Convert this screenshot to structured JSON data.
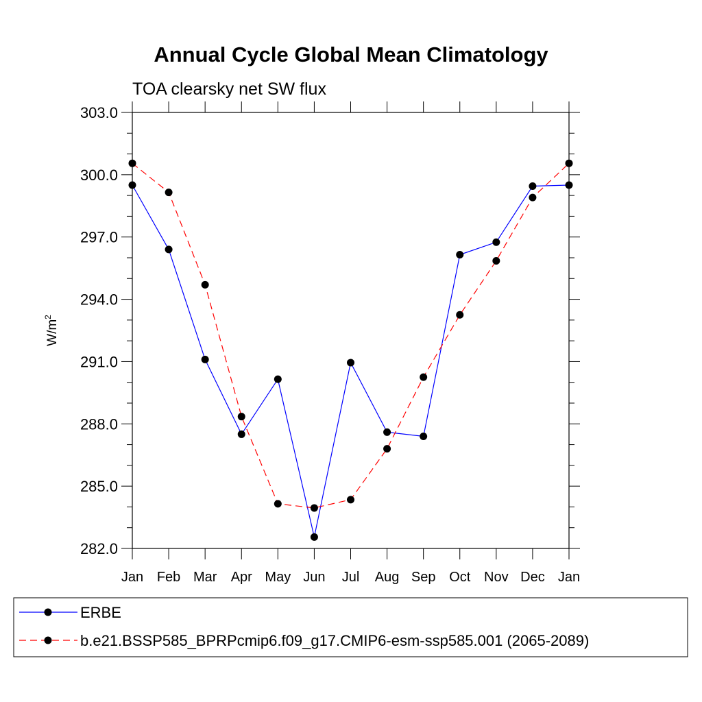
{
  "chart_data": {
    "type": "line",
    "title": "Annual Cycle Global Mean Climatology",
    "subtitle": "TOA clearsky net SW flux",
    "ylabel": "W/m",
    "ylabel_sup": "2",
    "xlabel": "",
    "categories": [
      "Jan",
      "Feb",
      "Mar",
      "Apr",
      "May",
      "Jun",
      "Jul",
      "Aug",
      "Sep",
      "Oct",
      "Nov",
      "Dec",
      "Jan"
    ],
    "ylim": [
      282.0,
      303.0
    ],
    "yticks": [
      "282.0",
      "285.0",
      "288.0",
      "291.0",
      "294.0",
      "297.0",
      "300.0",
      "303.0"
    ],
    "series": [
      {
        "name": "ERBE",
        "color": "#0000ff",
        "dash": "solid",
        "values": [
          299.5,
          296.4,
          291.1,
          287.5,
          290.15,
          282.55,
          290.95,
          287.6,
          287.4,
          296.15,
          296.75,
          299.45,
          299.5
        ]
      },
      {
        "name": "b.e21.BSSP585_BPRPcmip6.f09_g17.CMIP6-esm-ssp585.001 (2065-2089)",
        "color": "#ff0000",
        "dash": "dashed",
        "values": [
          300.55,
          299.15,
          294.7,
          288.35,
          284.15,
          283.95,
          284.35,
          286.8,
          290.25,
          293.25,
          295.85,
          298.9,
          300.55
        ]
      }
    ]
  }
}
